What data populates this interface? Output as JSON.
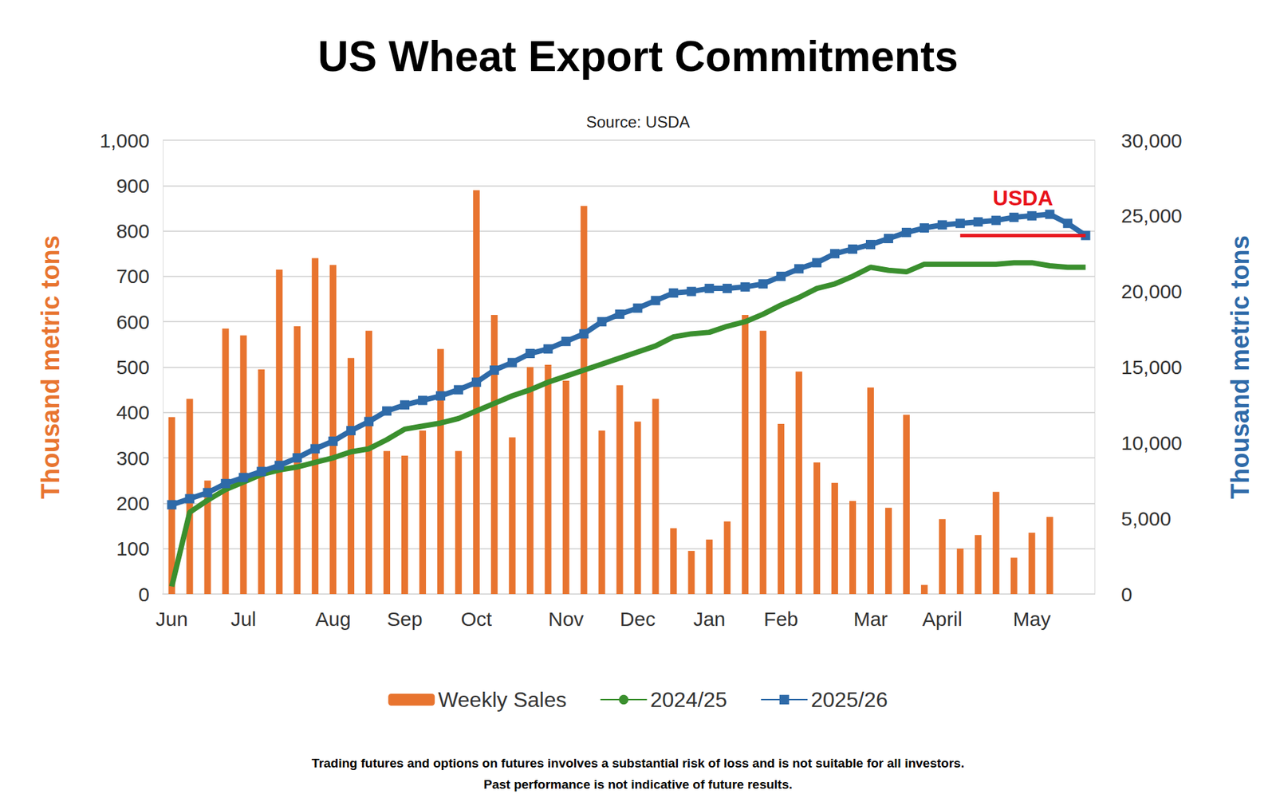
{
  "chart_data": {
    "type": "bar",
    "title": "US Wheat Export Commitments",
    "subtitle": "Source: USDA",
    "footnotes": [
      "Trading futures and options on futures involves a substantial risk of loss and is not suitable for all investors.",
      "Past performance is not indicative of future results."
    ],
    "y_label": "Thousand metric tons",
    "y2_label": "Thousand metric tons",
    "categories": [
      "Jun",
      null,
      null,
      null,
      "Jul",
      null,
      null,
      null,
      null,
      "Aug",
      null,
      null,
      null,
      "Sep",
      null,
      null,
      null,
      "Oct",
      null,
      null,
      null,
      null,
      "Nov",
      null,
      null,
      null,
      "Dec",
      null,
      null,
      null,
      "Jan",
      null,
      null,
      null,
      "Feb",
      null,
      null,
      null,
      null,
      "Mar",
      null,
      null,
      null,
      "April",
      null,
      null,
      null,
      null,
      "May",
      null,
      null,
      null
    ],
    "series": [
      {
        "name": "Weekly Sales",
        "type": "bar",
        "color": "#e8742f",
        "values": [
          390,
          430,
          250,
          585,
          570,
          495,
          715,
          590,
          740,
          725,
          520,
          580,
          315,
          305,
          360,
          540,
          315,
          890,
          615,
          345,
          500,
          505,
          470,
          855,
          360,
          460,
          380,
          430,
          145,
          95,
          120,
          160,
          615,
          580,
          375,
          490,
          290,
          245,
          205,
          455,
          190,
          395,
          20,
          165,
          100,
          130,
          225,
          80,
          135,
          170,
          null,
          null
        ]
      },
      {
        "name": "2024/25",
        "type": "line",
        "axis": "y2",
        "color": "#3a8f2e",
        "marker": "none",
        "values": [
          500,
          5400,
          6200,
          6900,
          7400,
          7900,
          8200,
          8400,
          8700,
          9000,
          9400,
          9600,
          10200,
          10900,
          11100,
          11300,
          11600,
          12100,
          12600,
          13100,
          13500,
          14000,
          14400,
          14800,
          15200,
          15600,
          16000,
          16400,
          17000,
          17200,
          17300,
          17700,
          18000,
          18500,
          19100,
          19600,
          20200,
          20500,
          21000,
          21600,
          21400,
          21300,
          21800,
          21800,
          21800,
          21800,
          21800,
          21900,
          21900,
          21700,
          21600,
          21600
        ]
      },
      {
        "name": "2025/26",
        "type": "line",
        "axis": "y2",
        "color": "#2e6aa8",
        "marker": "square",
        "values": [
          5900,
          6300,
          6700,
          7300,
          7700,
          8100,
          8500,
          9000,
          9600,
          10100,
          10800,
          11400,
          12100,
          12500,
          12800,
          13100,
          13500,
          14000,
          14800,
          15300,
          15900,
          16200,
          16700,
          17200,
          18000,
          18500,
          18900,
          19400,
          19900,
          20000,
          20200,
          20200,
          20300,
          20500,
          21000,
          21500,
          21900,
          22500,
          22800,
          23100,
          23500,
          23900,
          24200,
          24400,
          24500,
          24600,
          24700,
          24900,
          25000,
          25100,
          24500,
          23700
        ]
      }
    ],
    "reference_line": {
      "label": "USDA",
      "value": 23700,
      "axis": "y2",
      "color": "#e8131b",
      "x_start": 44
    },
    "ylim": [
      0,
      1000
    ],
    "yticks": [
      0,
      100,
      200,
      300,
      400,
      500,
      600,
      700,
      800,
      900,
      1000
    ],
    "y2lim": [
      0,
      30000
    ],
    "y2ticks": [
      0,
      5000,
      10000,
      15000,
      20000,
      25000,
      30000
    ],
    "grid": true,
    "legend": "bottom"
  }
}
